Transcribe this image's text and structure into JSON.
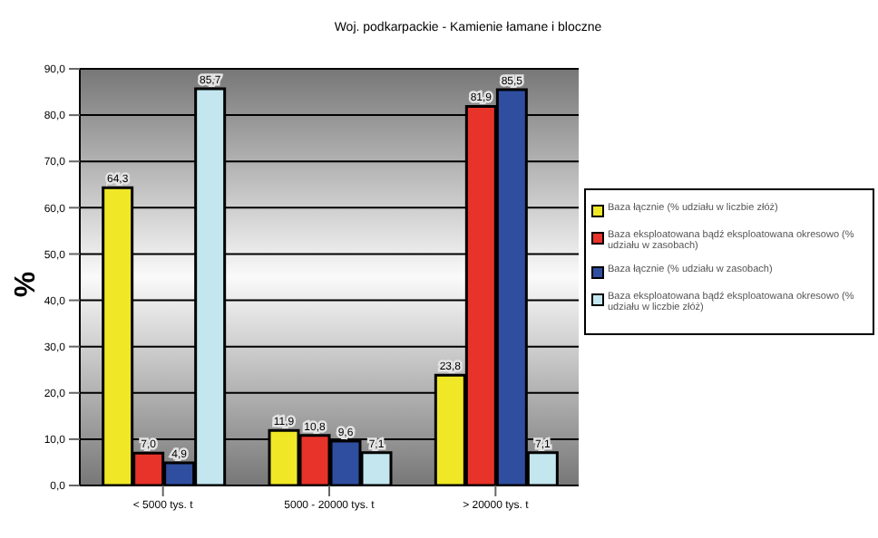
{
  "chart_data": {
    "type": "bar",
    "title": "Woj. podkarpackie - Kamienie łamane i bloczne",
    "ylabel": "%",
    "categories": [
      "< 5000 tys. t",
      "5000 - 20000 tys. t",
      "> 20000 tys. t"
    ],
    "series": [
      {
        "name": "Baza łącznie (% udziału w liczbie złóż)",
        "color": "#f0e826",
        "values": [
          64.3,
          11.9,
          23.8
        ],
        "value_labels": [
          "64,3",
          "11,9",
          "23,8"
        ]
      },
      {
        "name": "Baza eksploatowana bądź eksploatowana okresowo (% udziału w zasobach)",
        "color": "#e8332a",
        "values": [
          7.0,
          10.8,
          81.9
        ],
        "value_labels": [
          "7,0",
          "10,8",
          "81,9"
        ]
      },
      {
        "name": "Baza łącznie (% udziału w zasobach)",
        "color": "#2f4ea0",
        "values": [
          4.9,
          9.6,
          85.5
        ],
        "value_labels": [
          "4,9",
          "9,6",
          "85,5"
        ]
      },
      {
        "name": "Baza eksploatowana bądź eksploatowana okresowo (% udziału w liczbie złóż)",
        "color": "#c3e6ef",
        "values": [
          85.7,
          7.1,
          7.1
        ],
        "value_labels": [
          "85,7",
          "7,1",
          "7,1"
        ]
      }
    ],
    "ylim": [
      0,
      90
    ],
    "yticks": [
      {
        "value": 0,
        "label": "0,0"
      },
      {
        "value": 10,
        "label": "10,0"
      },
      {
        "value": 20,
        "label": "20,0"
      },
      {
        "value": 30,
        "label": "30,0"
      },
      {
        "value": 40,
        "label": "40,0"
      },
      {
        "value": 50,
        "label": "50,0"
      },
      {
        "value": 60,
        "label": "60,0"
      },
      {
        "value": 70,
        "label": "70,0"
      },
      {
        "value": 80,
        "label": "80,0"
      },
      {
        "value": 90,
        "label": "90,0"
      }
    ],
    "grid": "y",
    "legend": "right"
  }
}
